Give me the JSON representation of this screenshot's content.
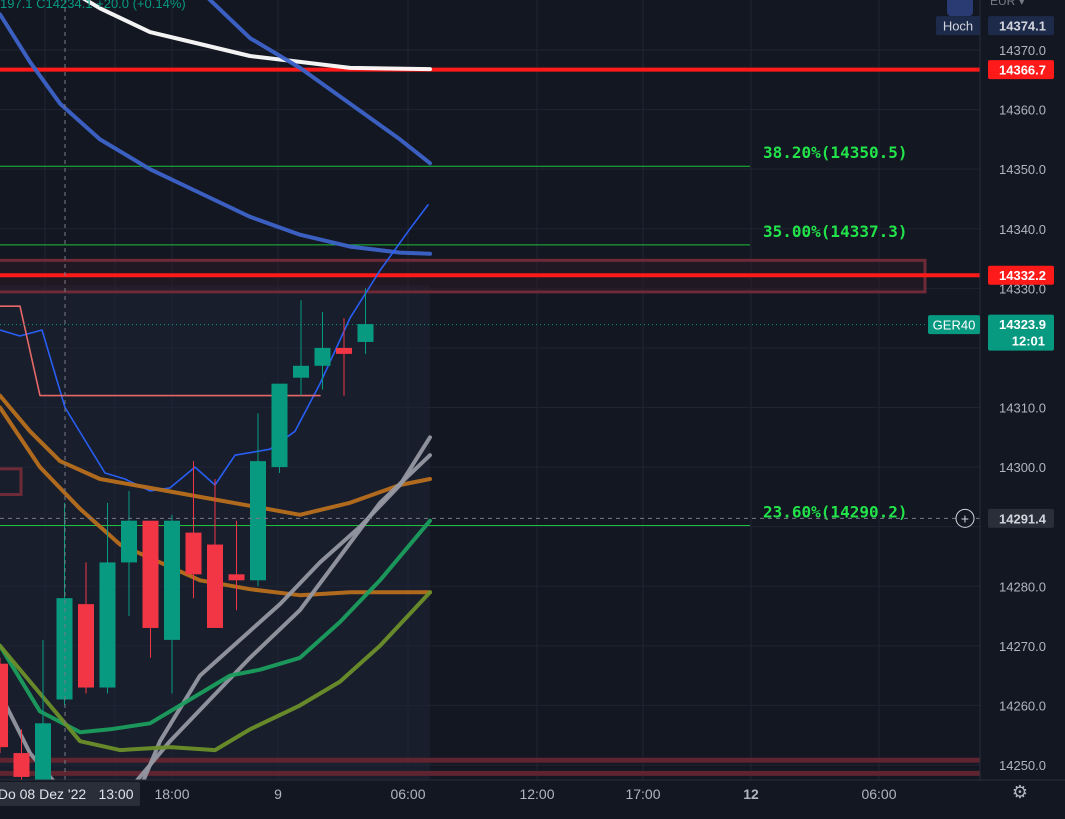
{
  "header": {
    "ohlc_fragment": "197.1  C14234.1  +20.0 (+0.14%)",
    "currency": "EUR"
  },
  "chart_data": {
    "type": "candlestick",
    "symbol": "GER40",
    "ylim": [
      14247,
      14377
    ],
    "price_axis_ticks": [
      14370.0,
      14360.0,
      14350.0,
      14340.0,
      14330.0,
      14310.0,
      14300.0,
      14280.0,
      14270.0,
      14260.0,
      14250.0
    ],
    "time_axis_ticks": [
      {
        "label": "Do 08 Dez '22",
        "bold": false
      },
      {
        "label": "13:00",
        "bold": false
      },
      {
        "label": "18:00",
        "bold": false
      },
      {
        "label": "9",
        "bold": false
      },
      {
        "label": "06:00",
        "bold": false
      },
      {
        "label": "12:00",
        "bold": false
      },
      {
        "label": "17:00",
        "bold": false
      },
      {
        "label": "12",
        "bold": true
      },
      {
        "label": "06:00",
        "bold": false
      }
    ],
    "candles": [
      {
        "o": 14267,
        "h": 14268,
        "l": 14252,
        "c": 14253
      },
      {
        "o": 14252,
        "h": 14256,
        "l": 14247,
        "c": 14248
      },
      {
        "o": 14247,
        "h": 14271,
        "l": 14247,
        "c": 14257
      },
      {
        "o": 14261,
        "h": 14294,
        "l": 14260,
        "c": 14278
      },
      {
        "o": 14277,
        "h": 14284,
        "l": 14262,
        "c": 14263
      },
      {
        "o": 14263,
        "h": 14294,
        "l": 14262,
        "c": 14284
      },
      {
        "o": 14284,
        "h": 14296,
        "l": 14275,
        "c": 14291
      },
      {
        "o": 14291,
        "h": 14291,
        "l": 14268,
        "c": 14273
      },
      {
        "o": 14271,
        "h": 14292,
        "l": 14262,
        "c": 14291
      },
      {
        "o": 14289,
        "h": 14301,
        "l": 14278,
        "c": 14282
      },
      {
        "o": 14287,
        "h": 14298,
        "l": 14274,
        "c": 14273
      },
      {
        "o": 14282,
        "h": 14291,
        "l": 14276,
        "c": 14281
      },
      {
        "o": 14281,
        "h": 14309,
        "l": 14280,
        "c": 14301
      },
      {
        "o": 14300,
        "h": 14313,
        "l": 14299,
        "c": 14314
      },
      {
        "o": 14315,
        "h": 14328,
        "l": 14312,
        "c": 14317
      },
      {
        "o": 14317,
        "h": 14326,
        "l": 14313,
        "c": 14320
      },
      {
        "o": 14320,
        "h": 14325,
        "l": 14312,
        "c": 14319
      },
      {
        "o": 14321,
        "h": 14330,
        "l": 14319,
        "c": 14324
      }
    ],
    "fibonacci": [
      {
        "label": "38.20%(14350.5)",
        "price": 14350.5
      },
      {
        "label": "35.00%(14337.3)",
        "price": 14337.3
      },
      {
        "label": "23.60%(14290.2)",
        "price": 14290.2
      }
    ],
    "horizontal_lines": [
      {
        "price": 14366.7,
        "color": "#ff1a1a"
      },
      {
        "price": 14332.2,
        "color": "#ff1a1a"
      }
    ],
    "price_labels": [
      {
        "text": "14374.1",
        "price": 14374.1,
        "tag": "Hoch",
        "bg": "#1e2a4a",
        "fg": "#d1d4dc"
      },
      {
        "text": "14366.7",
        "price": 14366.7,
        "tag": "",
        "bg": "#ff1a1a",
        "fg": "#ffffff"
      },
      {
        "text": "14332.2",
        "price": 14332.2,
        "tag": "",
        "bg": "#ff1a1a",
        "fg": "#ffffff"
      },
      {
        "text": "14323.9",
        "price": 14323.9,
        "tag": "GER40",
        "sub": "12:01",
        "bg": "#089981",
        "fg": "#ffffff"
      },
      {
        "text": "14291.4",
        "price": 14291.4,
        "tag": "",
        "bg": "#2a2e39",
        "fg": "#d1d4dc"
      }
    ],
    "moving_averages": [
      {
        "color": "#ffffff",
        "points": [
          [
            0,
            14390
          ],
          [
            20,
            14386
          ],
          [
            60,
            14381
          ],
          [
            100,
            14377
          ],
          [
            150,
            14373
          ],
          [
            200,
            14371
          ],
          [
            250,
            14369
          ],
          [
            300,
            14368
          ],
          [
            350,
            14367
          ],
          [
            430,
            14366.8
          ]
        ]
      },
      {
        "color": "#3d63c9",
        "points": [
          [
            120,
            14400
          ],
          [
            160,
            14390
          ],
          [
            200,
            14380
          ],
          [
            250,
            14372
          ],
          [
            300,
            14367
          ],
          [
            350,
            14361
          ],
          [
            400,
            14355
          ],
          [
            430,
            14351
          ]
        ]
      },
      {
        "color": "#3d63c9",
        "points": [
          [
            0,
            14376
          ],
          [
            30,
            14368
          ],
          [
            60,
            14361
          ],
          [
            100,
            14355
          ],
          [
            150,
            14350
          ],
          [
            200,
            14346
          ],
          [
            250,
            14342
          ],
          [
            300,
            14339
          ],
          [
            350,
            14337
          ],
          [
            400,
            14336
          ],
          [
            430,
            14335.8
          ]
        ]
      },
      {
        "color": "#2962ff",
        "thin": true,
        "points": [
          [
            0,
            14323
          ],
          [
            20,
            14322
          ],
          [
            42,
            14323
          ],
          [
            65,
            14310
          ],
          [
            105,
            14299
          ],
          [
            125,
            14298
          ],
          [
            150,
            14296
          ],
          [
            170,
            14296.5
          ],
          [
            195,
            14300
          ],
          [
            215,
            14297
          ],
          [
            235,
            14302
          ],
          [
            270,
            14303
          ],
          [
            295,
            14306
          ],
          [
            320,
            14314
          ],
          [
            350,
            14325
          ],
          [
            380,
            14333
          ],
          [
            410,
            14340
          ],
          [
            428,
            14344
          ]
        ]
      },
      {
        "color": "#f06b6b",
        "thin": true,
        "points": [
          [
            0,
            14327
          ],
          [
            20,
            14327
          ],
          [
            40,
            14312
          ],
          [
            320,
            14312
          ]
        ]
      },
      {
        "color": "#b86f1e",
        "points": [
          [
            0,
            14312
          ],
          [
            30,
            14306
          ],
          [
            60,
            14301
          ],
          [
            100,
            14298
          ],
          [
            150,
            14296.5
          ],
          [
            200,
            14295
          ],
          [
            250,
            14293.5
          ],
          [
            300,
            14292
          ],
          [
            350,
            14294
          ],
          [
            400,
            14297
          ],
          [
            430,
            14298
          ]
        ]
      },
      {
        "color": "#b86f1e",
        "points": [
          [
            0,
            14310
          ],
          [
            40,
            14300
          ],
          [
            80,
            14293
          ],
          [
            120,
            14287
          ],
          [
            160,
            14284
          ],
          [
            200,
            14281
          ],
          [
            250,
            14279.5
          ],
          [
            300,
            14278.5
          ],
          [
            350,
            14279
          ],
          [
            400,
            14279
          ],
          [
            430,
            14279
          ]
        ]
      },
      {
        "color": "#9598a1",
        "points": [
          [
            0,
            14262
          ],
          [
            30,
            14252
          ],
          [
            60,
            14246
          ],
          [
            100,
            14245
          ],
          [
            140,
            14246
          ],
          [
            160,
            14254
          ],
          [
            200,
            14265
          ],
          [
            240,
            14271
          ],
          [
            280,
            14277
          ],
          [
            320,
            14284
          ],
          [
            360,
            14290
          ],
          [
            400,
            14297
          ],
          [
            430,
            14305
          ]
        ]
      },
      {
        "color": "#9598a1",
        "points": [
          [
            30,
            14245
          ],
          [
            80,
            14244
          ],
          [
            130,
            14246
          ],
          [
            170,
            14254
          ],
          [
            210,
            14261
          ],
          [
            250,
            14268
          ],
          [
            300,
            14276
          ],
          [
            340,
            14285
          ],
          [
            380,
            14294
          ],
          [
            430,
            14302
          ]
        ]
      },
      {
        "color": "#1b9e5e",
        "points": [
          [
            0,
            14270
          ],
          [
            40,
            14259
          ],
          [
            80,
            14255.5
          ],
          [
            110,
            14256
          ],
          [
            150,
            14257
          ],
          [
            190,
            14261
          ],
          [
            230,
            14265
          ],
          [
            260,
            14266
          ],
          [
            300,
            14268
          ],
          [
            340,
            14274
          ],
          [
            380,
            14281
          ],
          [
            430,
            14291
          ]
        ]
      },
      {
        "color": "#6b8f2a",
        "points": [
          [
            0,
            14270
          ],
          [
            40,
            14262
          ],
          [
            80,
            14254
          ],
          [
            120,
            14252.5
          ],
          [
            170,
            14253
          ],
          [
            215,
            14252.5
          ],
          [
            250,
            14256
          ],
          [
            300,
            14260
          ],
          [
            340,
            14264
          ],
          [
            380,
            14270
          ],
          [
            430,
            14279
          ]
        ]
      }
    ],
    "zones": [
      {
        "top": 14334.7,
        "bottom": 14329.4,
        "x_end": 925
      },
      {
        "top": 14250.8,
        "bottom": 14250.8,
        "x_end": 980
      },
      {
        "top": 14248.6,
        "bottom": 14248.6,
        "x_end": 980
      }
    ],
    "small_box": {
      "top": 14299.7,
      "bottom": 14295.4
    }
  }
}
